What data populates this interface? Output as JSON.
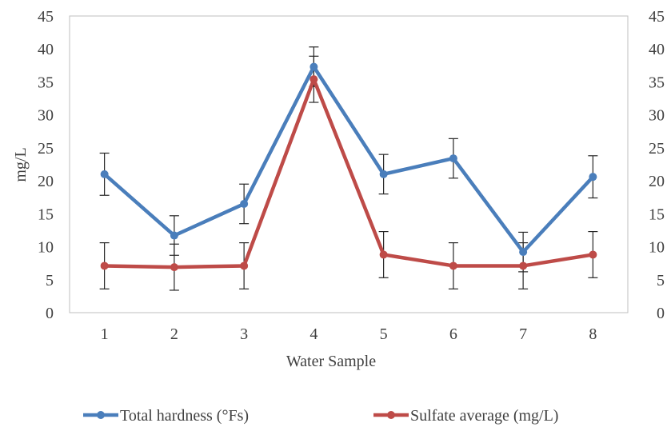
{
  "chart_data": {
    "type": "line",
    "title": "",
    "xlabel": "Water Sample",
    "ylabel": "mg/L",
    "categories": [
      "1",
      "2",
      "3",
      "4",
      "5",
      "6",
      "7",
      "8"
    ],
    "ylim": [
      0,
      45
    ],
    "yticks": [
      0,
      5,
      10,
      15,
      20,
      25,
      30,
      35,
      40,
      45
    ],
    "secondary_yticks": [
      0,
      5,
      10,
      15,
      20,
      25,
      30,
      35,
      40,
      45
    ],
    "grid": false,
    "legend_position": "bottom",
    "series": [
      {
        "name": "Total hardness (°Fs)",
        "color": "#4a7ebb",
        "values": [
          21,
          11.7,
          16.5,
          37.3,
          21,
          23.4,
          9.2,
          20.6
        ],
        "error": [
          3.2,
          3.0,
          3.0,
          3.0,
          3.0,
          3.0,
          3.0,
          3.2
        ]
      },
      {
        "name": "Sulfate average (mg/L)",
        "color": "#be4b48",
        "values": [
          7.1,
          6.9,
          7.1,
          35.4,
          8.8,
          7.1,
          7.1,
          8.8
        ],
        "error": [
          3.5,
          3.5,
          3.5,
          3.5,
          3.5,
          3.5,
          3.5,
          3.5
        ]
      }
    ]
  }
}
